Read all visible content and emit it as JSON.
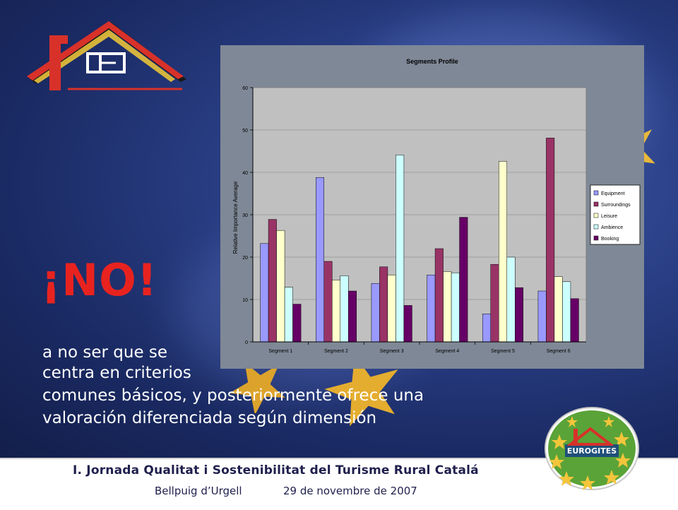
{
  "heading": "¡NO!",
  "body_lines": [
    "a no ser que se",
    "centra en criterios",
    "comunes básicos, y posteriormente ofrece una",
    "valoración diferenciada según dimensión"
  ],
  "footer": {
    "title": "I. Jornada  Qualitat i Sostenibilitat del Turisme Rural Catalá",
    "place": "Bellpuig d’Urgell",
    "date": "29 de novembre de 2007"
  },
  "logo_badge": {
    "text": "EUROGITES"
  },
  "colors": {
    "background": "#1f3079",
    "heading": "#e8231f",
    "chart_bg": "#7f8896",
    "plot_bg": "#c0c0c0",
    "badge_green": "#5aa338",
    "star_yellow": "#f3c53a"
  },
  "chart_data": {
    "type": "bar",
    "title": "Segments Profile",
    "ylabel": "Relative Importance Average",
    "xlabel": "",
    "ylim": [
      0,
      60
    ],
    "yticks": [
      "0",
      "10",
      "20",
      "30",
      "40",
      "50",
      "60"
    ],
    "grid": true,
    "legend": "right",
    "categories": [
      "Segment 1",
      "Segment 2",
      "Segment 3",
      "Segment 4",
      "Segment 5",
      "Segment 6"
    ],
    "series": [
      {
        "name": "Equipment",
        "color": "#9999ff",
        "values": [
          23.2,
          38.8,
          13.8,
          15.8,
          6.6,
          12.0
        ]
      },
      {
        "name": "Surroundings",
        "color": "#993366",
        "values": [
          28.9,
          19.0,
          17.7,
          22.0,
          18.3,
          48.1
        ]
      },
      {
        "name": "Leisure",
        "color": "#ffffcc",
        "values": [
          26.3,
          14.6,
          15.8,
          16.6,
          42.6,
          15.4
        ]
      },
      {
        "name": "Ambience",
        "color": "#ccffff",
        "values": [
          12.9,
          15.6,
          44.1,
          16.3,
          20.0,
          14.2
        ]
      },
      {
        "name": "Booking",
        "color": "#660066",
        "values": [
          8.9,
          12.0,
          8.6,
          29.4,
          12.8,
          10.2
        ]
      }
    ]
  }
}
